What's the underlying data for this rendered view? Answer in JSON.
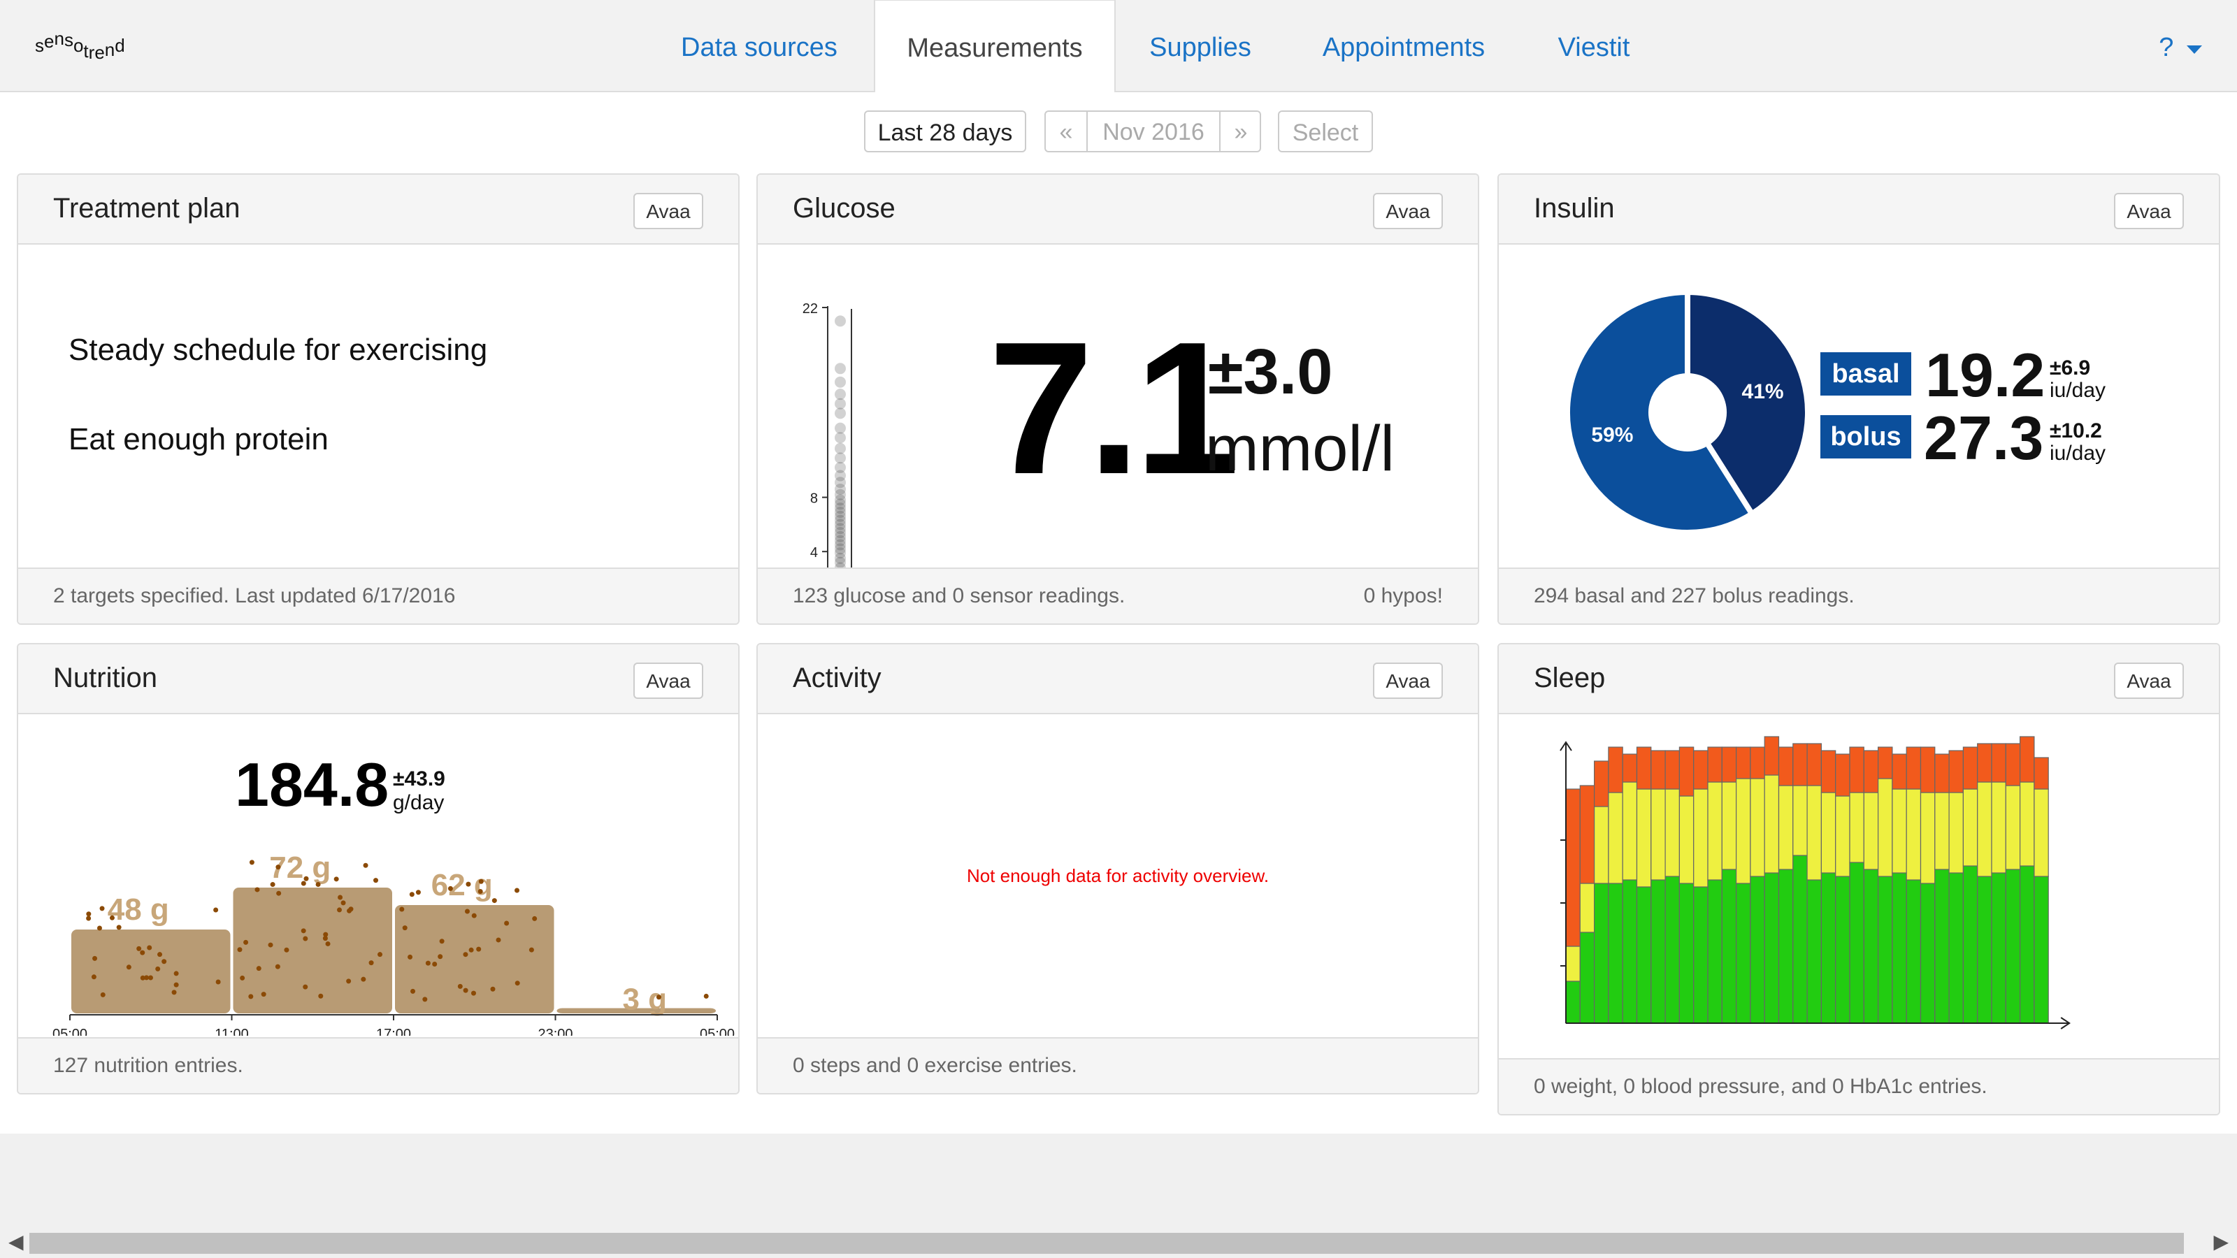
{
  "app": {
    "logo_text": "sensotrend"
  },
  "nav": {
    "tabs": [
      {
        "label": "Data sources",
        "active": false
      },
      {
        "label": "Measurements",
        "active": true
      },
      {
        "label": "Supplies",
        "active": false
      },
      {
        "label": "Appointments",
        "active": false
      },
      {
        "label": "Viestit",
        "active": false
      }
    ],
    "help_label": "?"
  },
  "datebar": {
    "last28": "Last 28 days",
    "prev": "«",
    "month": "Nov 2016",
    "next": "»",
    "select": "Select"
  },
  "panels": {
    "treatment": {
      "title": "Treatment plan",
      "button": "Avaa",
      "lines": [
        "Steady schedule for exercising",
        "Eat enough protein"
      ],
      "footer": "2 targets specified. Last updated 6/17/2016"
    },
    "glucose": {
      "title": "Glucose",
      "button": "Avaa",
      "value": "7.1",
      "sd": "±3.0",
      "unit": "mmol/l",
      "axis_ticks": [
        "22",
        "8",
        "4"
      ],
      "footer": "123 glucose and 0 sensor readings.",
      "footer_right": "0 hypos!",
      "readings": [
        21,
        17.5,
        16.5,
        15.6,
        14.9,
        14.2,
        13.1,
        12.4,
        11.6,
        10.9,
        10.2,
        9.6,
        9.1,
        8.6,
        8.2,
        7.8,
        7.5,
        7.2,
        6.9,
        6.6,
        6.3,
        6.0,
        5.7,
        5.4,
        5.1,
        4.8,
        4.5,
        4.2,
        3.9,
        3.5,
        3.2,
        2.8
      ]
    },
    "insulin": {
      "title": "Insulin",
      "button": "Avaa",
      "chart_data": {
        "type": "pie",
        "slices": [
          {
            "label": "41%",
            "value": 41,
            "color": "#0c2d6b"
          },
          {
            "label": "59%",
            "value": 59,
            "color": "#0b4f9c"
          }
        ]
      },
      "basal": {
        "label": "basal",
        "value": "19.2",
        "sd": "±6.9",
        "unit": "iu/day"
      },
      "bolus": {
        "label": "bolus",
        "value": "27.3",
        "sd": "±10.2",
        "unit": "iu/day"
      },
      "footer": "294 basal and 227 bolus readings."
    },
    "nutrition": {
      "title": "Nutrition",
      "button": "Avaa",
      "value": "184.8",
      "sd": "±43.9",
      "unit": "g/day",
      "chart_data": {
        "type": "bar",
        "categories": [
          "05:00-11:00",
          "11:00-17:00",
          "17:00-23:00",
          "23:00-05:00"
        ],
        "values": [
          48,
          72,
          62,
          3
        ],
        "labels": [
          "48 g",
          "72 g",
          "62 g",
          "3 g"
        ],
        "x_ticks": [
          "05:00",
          "11:00",
          "17:00",
          "23:00",
          "05:00"
        ]
      },
      "footer": "127 nutrition entries."
    },
    "activity": {
      "title": "Activity",
      "button": "Avaa",
      "message": "Not enough data for activity overview.",
      "footer": "0 steps and 0 exercise entries."
    },
    "sleep": {
      "title": "Sleep",
      "button": "Avaa",
      "chart_data": {
        "type": "bar",
        "stacked": true,
        "colors": {
          "green": "#22cc11",
          "yellow": "#eef040",
          "red": "#f25a1c"
        },
        "series": [
          {
            "name": "green",
            "values": [
              12,
              26,
              40,
              40,
              41,
              39,
              41,
              42,
              40,
              39,
              41,
              44,
              40,
              42,
              43,
              44,
              48,
              41,
              43,
              42,
              46,
              44,
              42,
              43,
              41,
              40,
              44,
              43,
              45,
              42,
              43,
              44,
              45,
              42
            ]
          },
          {
            "name": "yellow",
            "values": [
              10,
              14,
              22,
              26,
              28,
              28,
              26,
              25,
              25,
              28,
              28,
              25,
              30,
              28,
              28,
              24,
              20,
              27,
              23,
              23,
              20,
              22,
              28,
              24,
              26,
              26,
              22,
              23,
              22,
              27,
              26,
              24,
              24,
              25
            ]
          },
          {
            "name": "red",
            "values": [
              45,
              28,
              13,
              13,
              8,
              12,
              11,
              11,
              14,
              11,
              10,
              10,
              9,
              9,
              11,
              11,
              12,
              12,
              12,
              12,
              13,
              12,
              9,
              10,
              12,
              13,
              11,
              12,
              12,
              11,
              11,
              12,
              13,
              9
            ]
          }
        ]
      },
      "footer": "0 weight, 0 blood pressure, and 0 HbA1c entries."
    }
  }
}
